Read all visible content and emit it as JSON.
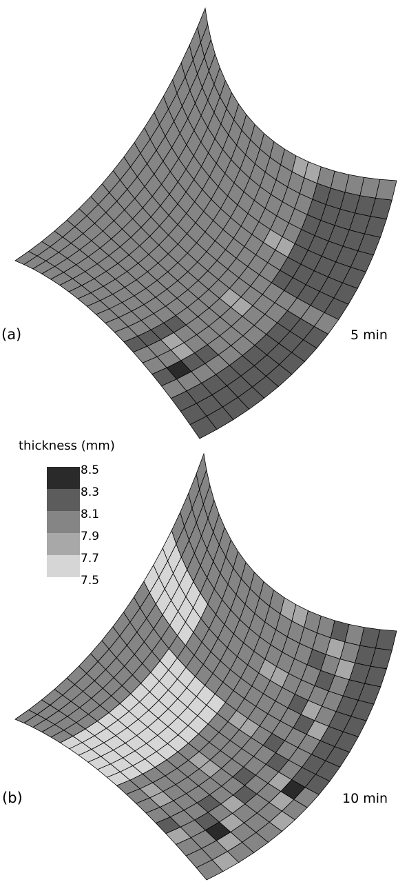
{
  "panels": [
    {
      "label": "(a)",
      "time": "5 min"
    },
    {
      "label": "(b)",
      "time": "10 min"
    }
  ],
  "legend": {
    "title": "thickness (mm)",
    "ticks": [
      "8.5",
      "8.3",
      "8.1",
      "7.9",
      "7.7",
      "7.5"
    ],
    "colors": [
      "#2a2a2a",
      "#5c5c5c",
      "#858585",
      "#a8a8a8",
      "#d6d6d6"
    ]
  },
  "mesh": {
    "rows": 18,
    "cols": 20,
    "stroke_color": "#000000"
  }
}
